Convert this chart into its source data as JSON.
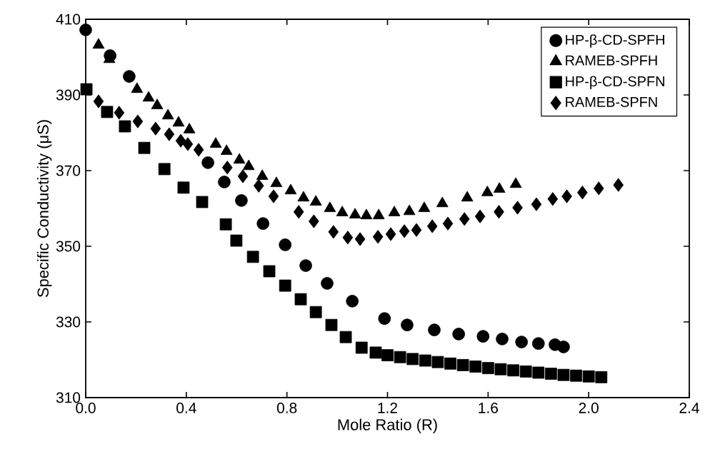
{
  "chart_data": {
    "type": "scatter",
    "xlabel": "Mole Ratio (R)",
    "ylabel": "Specific Conductivity (μS)",
    "xlim": [
      0,
      2.4
    ],
    "ylim": [
      310,
      410
    ],
    "xticks": [
      {
        "value": 0,
        "label": "0.0"
      },
      {
        "value": 0.4,
        "label": "0.4"
      },
      {
        "value": 0.8,
        "label": "0.8"
      },
      {
        "value": 1.2,
        "label": "1.2"
      },
      {
        "value": 1.6,
        "label": "1.6"
      },
      {
        "value": 2.0,
        "label": "2.0"
      },
      {
        "value": 2.4,
        "label": "2.4"
      }
    ],
    "yticks": [
      310,
      330,
      350,
      370,
      390,
      410
    ],
    "legend": "top right",
    "grid": false,
    "series": [
      {
        "name": "HP-β-CD-SPFH",
        "color": "#000000",
        "marker": "circle",
        "x": [
          0.0,
          0.097,
          0.173,
          0.486,
          0.551,
          0.619,
          0.705,
          0.793,
          0.875,
          0.96,
          1.06,
          1.188,
          1.278,
          1.386,
          1.483,
          1.58,
          1.656,
          1.733,
          1.8,
          1.866,
          1.9
        ],
        "values": [
          407.2,
          400.4,
          394.9,
          372.1,
          367.0,
          362.1,
          356.0,
          350.4,
          344.9,
          340.2,
          335.5,
          330.9,
          329.2,
          327.9,
          326.8,
          326.2,
          325.5,
          324.7,
          324.3,
          324.0,
          323.4
        ]
      },
      {
        "name": "RAMEB-SPFH",
        "color": "#000000",
        "marker": "triangle",
        "x": [
          0.051,
          0.094,
          0.204,
          0.25,
          0.284,
          0.327,
          0.369,
          0.412,
          0.517,
          0.56,
          0.611,
          0.648,
          0.702,
          0.758,
          0.815,
          0.866,
          0.915,
          0.971,
          1.02,
          1.071,
          1.116,
          1.165,
          1.227,
          1.287,
          1.346,
          1.418,
          1.517,
          1.597,
          1.645,
          1.71
        ],
        "values": [
          403.2,
          399.4,
          391.5,
          389.2,
          387.2,
          384.5,
          382.6,
          380.8,
          377.0,
          375.1,
          372.8,
          371.1,
          368.5,
          366.6,
          364.7,
          362.8,
          361.7,
          360.0,
          358.9,
          358.3,
          358.1,
          358.1,
          358.9,
          359.2,
          360.0,
          361.3,
          362.8,
          364.2,
          365.1,
          366.4
        ]
      },
      {
        "name": "HP-β-CD-SPFN",
        "color": "#000000",
        "marker": "square",
        "x": [
          0.003,
          0.085,
          0.156,
          0.233,
          0.313,
          0.389,
          0.463,
          0.557,
          0.599,
          0.665,
          0.73,
          0.793,
          0.855,
          0.915,
          0.977,
          1.034,
          1.097,
          1.153,
          1.2,
          1.25,
          1.3,
          1.35,
          1.4,
          1.45,
          1.5,
          1.55,
          1.6,
          1.65,
          1.7,
          1.75,
          1.8,
          1.85,
          1.9,
          1.95,
          2.0,
          2.05
        ],
        "values": [
          391.5,
          385.5,
          381.7,
          376.0,
          370.4,
          365.5,
          361.7,
          355.8,
          351.5,
          347.2,
          343.4,
          339.6,
          336.0,
          332.6,
          329.2,
          326.0,
          323.2,
          321.9,
          321.2,
          320.7,
          320.2,
          319.8,
          319.4,
          319.0,
          318.6,
          318.2,
          317.8,
          317.5,
          317.2,
          316.9,
          316.6,
          316.3,
          316.0,
          315.8,
          315.6,
          315.4
        ]
      },
      {
        "name": "RAMEB-SPFN",
        "color": "#000000",
        "marker": "diamond",
        "x": [
          0.051,
          0.133,
          0.207,
          0.278,
          0.332,
          0.378,
          0.406,
          0.449,
          0.563,
          0.625,
          0.688,
          0.747,
          0.847,
          0.907,
          0.985,
          1.042,
          1.091,
          1.162,
          1.213,
          1.267,
          1.315,
          1.378,
          1.44,
          1.506,
          1.568,
          1.643,
          1.717,
          1.792,
          1.857,
          1.913,
          1.975,
          2.04,
          2.118
        ],
        "values": [
          388.3,
          385.3,
          383.0,
          381.1,
          379.6,
          377.9,
          377.0,
          375.5,
          370.8,
          368.5,
          366.0,
          363.2,
          359.1,
          356.6,
          353.8,
          352.3,
          351.9,
          352.5,
          353.2,
          354.0,
          354.3,
          355.3,
          356.0,
          357.2,
          357.9,
          359.1,
          360.2,
          361.1,
          362.5,
          363.2,
          364.2,
          365.3,
          366.2
        ]
      }
    ]
  }
}
